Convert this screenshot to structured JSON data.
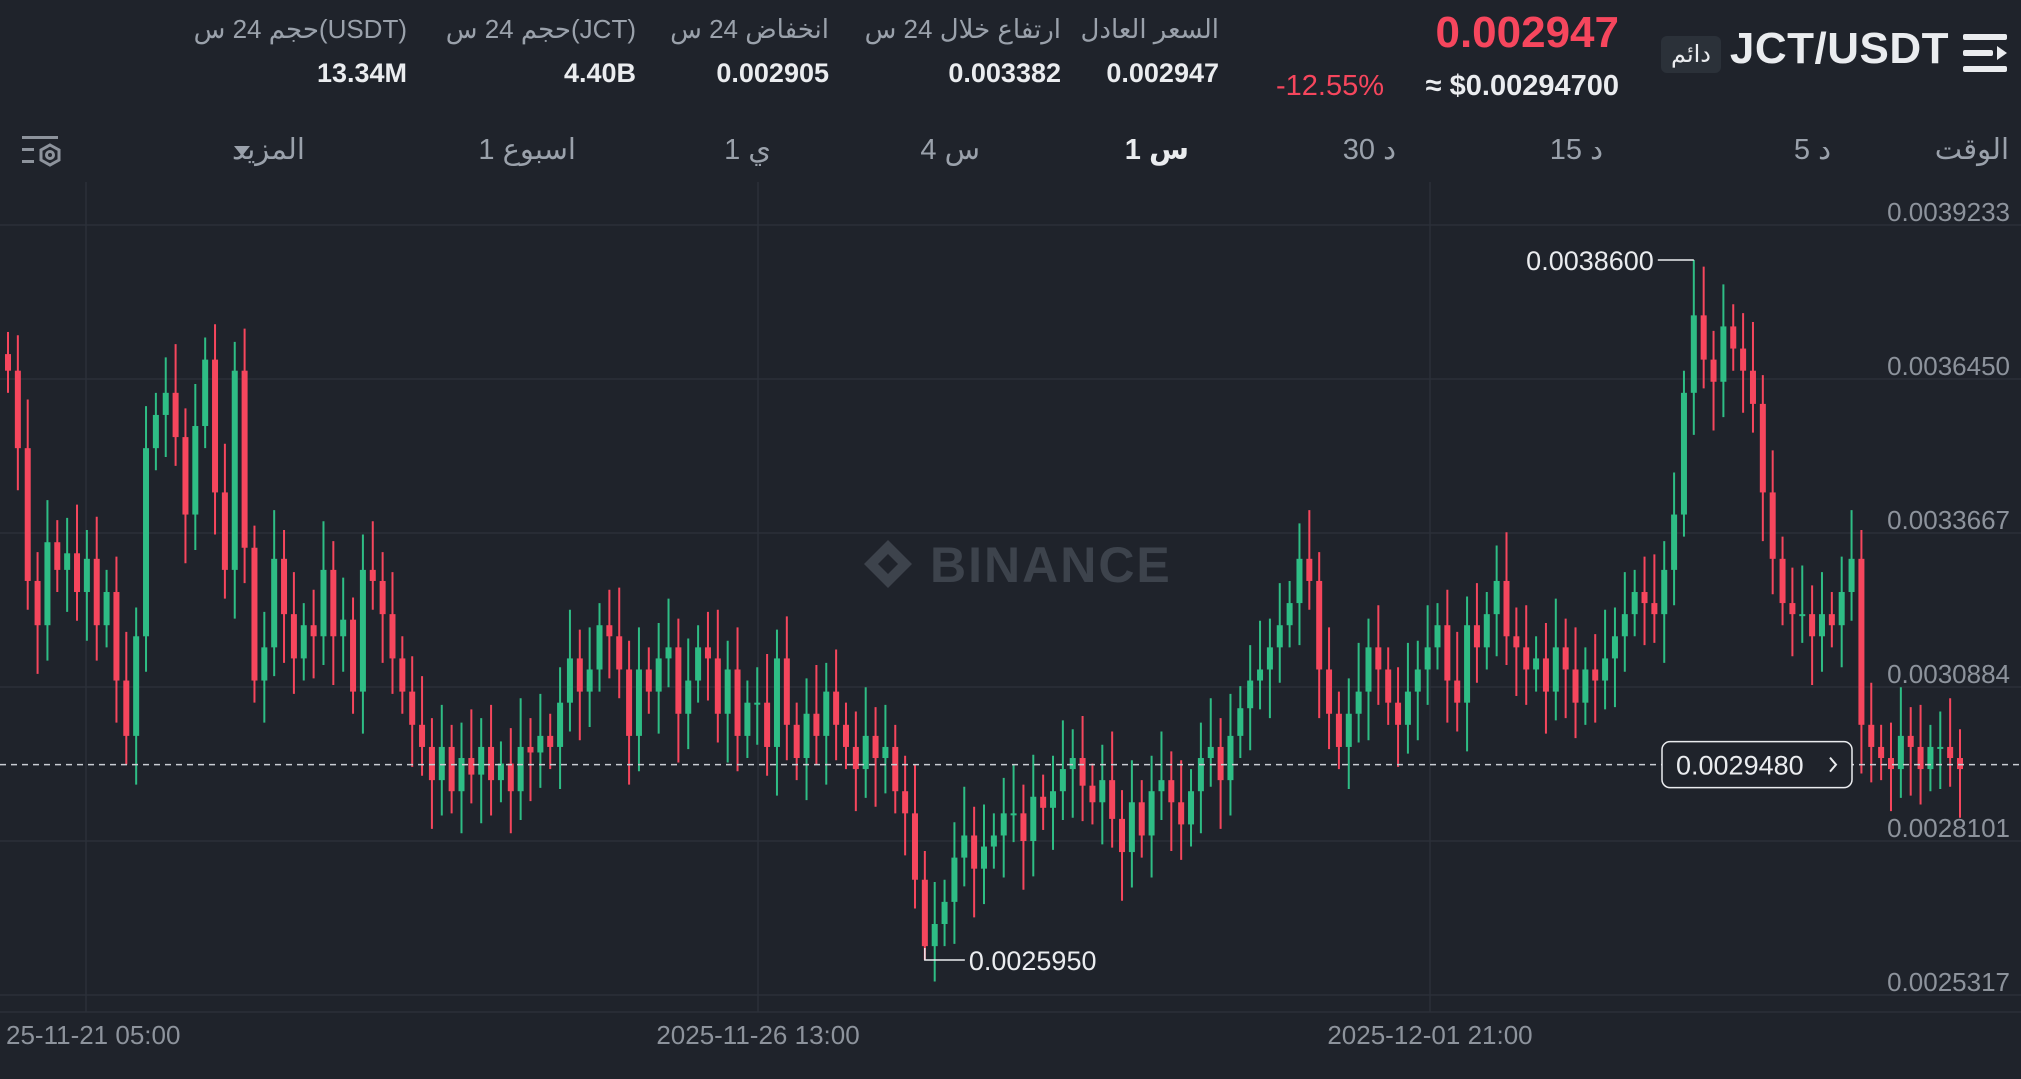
{
  "header": {
    "pair": "JCT/USDT",
    "badge": "دائم",
    "last_price": "0.002947",
    "change_pct": "-12.55%",
    "usd_price": "≈ $0.00294700",
    "stats": [
      {
        "label": "السعر العادل",
        "value": "0.002947"
      },
      {
        "label": "ارتفاع خلال 24 س",
        "value": "0.003382"
      },
      {
        "label": "انخفاض 24 س",
        "value": "0.002905"
      },
      {
        "label": "حجم 24 س(JCT)",
        "value": "4.40B"
      },
      {
        "label": "حجم 24 س(USDT)",
        "value": "13.34M"
      }
    ]
  },
  "tabs": {
    "time": "الوقت",
    "m5": "5 د",
    "m15": "15 د",
    "m30": "30 د",
    "h1": "1 س",
    "h4": "4 س",
    "d1": "1 ي",
    "w1": "1 اسبوع",
    "more": "المزيد"
  },
  "colors": {
    "up": "#2ebd85",
    "down": "#f6465d",
    "bg": "#1f232b"
  },
  "chart_data": {
    "type": "candlestick",
    "interval": "1 س",
    "yticks": [
      0.0039233,
      0.003645,
      0.0033667,
      0.0030884,
      0.0028101,
      0.0025317
    ],
    "ytick_labels": [
      "0.0039233",
      "0.0036450",
      "0.0033667",
      "0.0030884",
      "0.0028101",
      "0.0025317"
    ],
    "xtick_labels": [
      "25-11-21 05:00",
      "2025-11-26 13:00",
      "2025-12-01 21:00"
    ],
    "high_label": "0.0038600",
    "low_label": "0.0025950",
    "current_label": "0.0029480",
    "current_value": 0.002948,
    "high_value": 0.00386,
    "low_value": 0.002595,
    "closes": [
      0.00366,
      0.00352,
      0.00328,
      0.0032,
      0.00335,
      0.0033,
      0.00333,
      0.00326,
      0.00332,
      0.0032,
      0.00326,
      0.0031,
      0.003,
      0.00318,
      0.00352,
      0.00358,
      0.00362,
      0.00354,
      0.0034,
      0.00356,
      0.00368,
      0.00344,
      0.0033,
      0.00366,
      0.00334,
      0.0031,
      0.00316,
      0.00332,
      0.00322,
      0.00314,
      0.0032,
      0.00318,
      0.0033,
      0.00318,
      0.00321,
      0.00308,
      0.0033,
      0.00328,
      0.00322,
      0.00314,
      0.00308,
      0.00302,
      0.00298,
      0.00292,
      0.00298,
      0.0029,
      0.00296,
      0.00293,
      0.00298,
      0.00292,
      0.00295,
      0.0029,
      0.00298,
      0.00297,
      0.003,
      0.00298,
      0.00306,
      0.00314,
      0.00308,
      0.00312,
      0.0032,
      0.00318,
      0.00312,
      0.003,
      0.00312,
      0.00308,
      0.00314,
      0.00316,
      0.00304,
      0.0031,
      0.00316,
      0.00314,
      0.00304,
      0.00312,
      0.003,
      0.00306,
      0.00306,
      0.00298,
      0.00314,
      0.00302,
      0.00296,
      0.00304,
      0.003,
      0.00308,
      0.00302,
      0.00298,
      0.00294,
      0.003,
      0.00296,
      0.00298,
      0.0029,
      0.00286,
      0.00274,
      0.00262,
      0.00266,
      0.0027,
      0.00278,
      0.00282,
      0.00276,
      0.0028,
      0.00282,
      0.00286,
      0.00286,
      0.00281,
      0.00289,
      0.00287,
      0.0029,
      0.00294,
      0.00296,
      0.00291,
      0.00288,
      0.00292,
      0.00285,
      0.00279,
      0.00288,
      0.00282,
      0.0029,
      0.00292,
      0.00288,
      0.00284,
      0.0029,
      0.00296,
      0.00298,
      0.00292,
      0.003,
      0.00305,
      0.0031,
      0.00312,
      0.00316,
      0.0032,
      0.00324,
      0.00332,
      0.00328,
      0.00312,
      0.00304,
      0.00298,
      0.00304,
      0.00308,
      0.00316,
      0.00312,
      0.00306,
      0.00302,
      0.00308,
      0.00312,
      0.00316,
      0.0032,
      0.0031,
      0.00306,
      0.0032,
      0.00316,
      0.00322,
      0.00328,
      0.00318,
      0.00316,
      0.00312,
      0.00314,
      0.00308,
      0.00316,
      0.00312,
      0.00306,
      0.00312,
      0.0031,
      0.00314,
      0.00318,
      0.00322,
      0.00326,
      0.00324,
      0.00322,
      0.0033,
      0.0034,
      0.00362,
      0.00376,
      0.00368,
      0.00364,
      0.00374,
      0.0037,
      0.00366,
      0.0036,
      0.00344,
      0.00332,
      0.00324,
      0.00322,
      0.00322,
      0.00318,
      0.00322,
      0.0032,
      0.00326,
      0.00332,
      0.00302,
      0.00298,
      0.00296,
      0.00294,
      0.003,
      0.00298,
      0.00294,
      0.00298,
      0.00298,
      0.00296,
      0.00294
    ]
  },
  "watermark": "BINANCE"
}
